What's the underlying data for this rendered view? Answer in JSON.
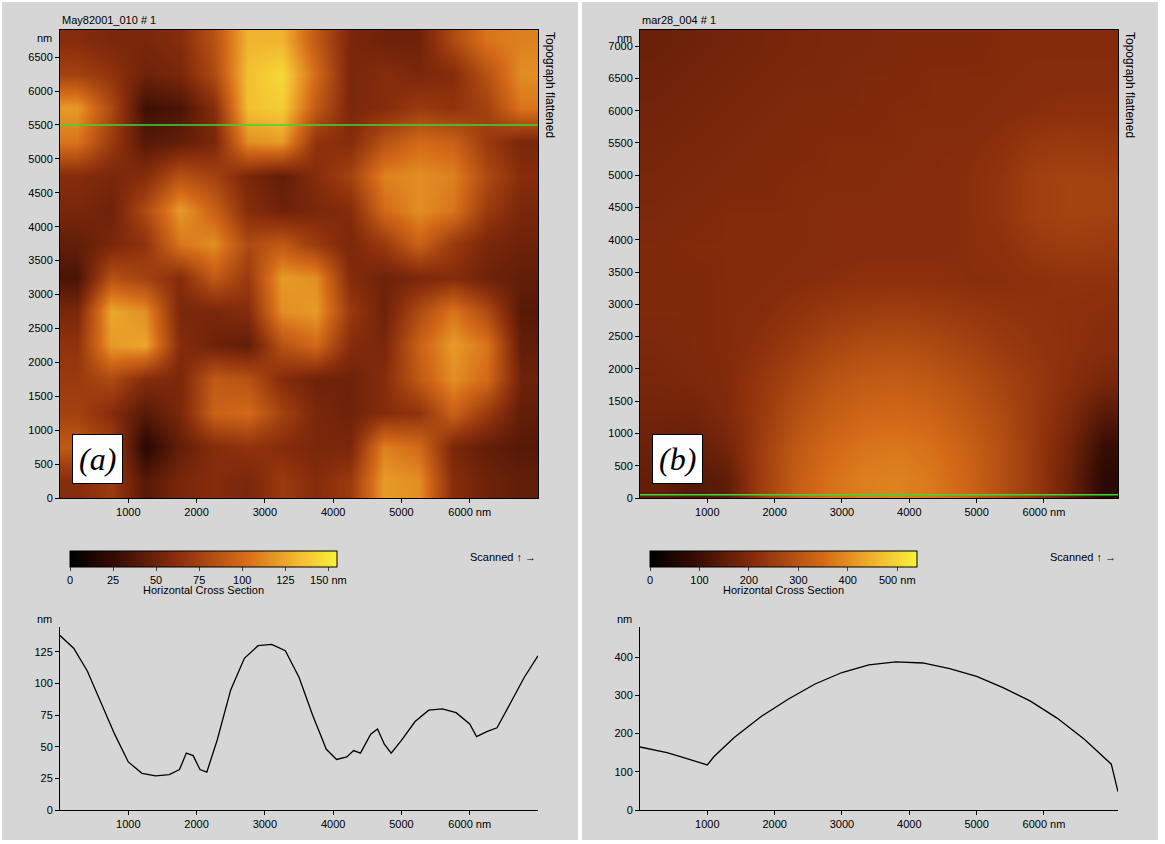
{
  "chart_data": [
    {
      "type": "heatmap",
      "label": "(a)",
      "title": "May82001_010 # 1",
      "side_text": "Topograph flattened",
      "scan_text": "Scanned ↑ →",
      "ylabel": "nm",
      "xlim": [
        0,
        7000
      ],
      "ylim": [
        0,
        6900
      ],
      "xticks": [
        1000,
        2000,
        3000,
        4000,
        5000,
        {
          "value": 6000,
          "label": "6000 nm"
        }
      ],
      "yticks": [
        0,
        500,
        1000,
        1500,
        2000,
        2500,
        3000,
        3500,
        4000,
        4500,
        5000,
        5500,
        6000,
        6500
      ],
      "x": [
        250,
        750,
        1250,
        1750,
        2250,
        2750,
        3250,
        3750,
        4250,
        4750,
        5250,
        5750,
        6250,
        6750
      ],
      "y": [
        250,
        750,
        1250,
        1750,
        2250,
        2750,
        3250,
        3750,
        4250,
        4750,
        5250,
        5750,
        6250,
        6750
      ],
      "z": [
        [
          60,
          70,
          40,
          55,
          60,
          55,
          70,
          60,
          70,
          120,
          115,
          60,
          50,
          45
        ],
        [
          90,
          75,
          20,
          45,
          60,
          65,
          60,
          55,
          55,
          110,
          100,
          55,
          45,
          40
        ],
        [
          75,
          60,
          40,
          55,
          95,
          100,
          75,
          55,
          50,
          60,
          65,
          95,
          70,
          45
        ],
        [
          70,
          80,
          60,
          55,
          90,
          85,
          60,
          50,
          50,
          60,
          90,
          115,
          100,
          50
        ],
        [
          65,
          120,
          125,
          60,
          50,
          45,
          85,
          100,
          60,
          55,
          95,
          120,
          105,
          45
        ],
        [
          55,
          125,
          115,
          55,
          55,
          60,
          115,
          120,
          70,
          50,
          80,
          105,
          80,
          40
        ],
        [
          35,
          85,
          75,
          60,
          90,
          70,
          120,
          115,
          60,
          50,
          55,
          60,
          50,
          45
        ],
        [
          45,
          55,
          65,
          105,
          115,
          80,
          90,
          70,
          55,
          70,
          95,
          70,
          55,
          50
        ],
        [
          55,
          50,
          80,
          120,
          95,
          60,
          50,
          55,
          60,
          100,
          115,
          105,
          70,
          55
        ],
        [
          60,
          55,
          60,
          85,
          75,
          55,
          45,
          60,
          75,
          110,
          115,
          110,
          80,
          60
        ],
        [
          105,
          70,
          40,
          45,
          55,
          115,
          120,
          65,
          60,
          85,
          100,
          95,
          70,
          55
        ],
        [
          120,
          80,
          30,
          35,
          60,
          135,
          140,
          90,
          55,
          60,
          70,
          65,
          75,
          105
        ],
        [
          75,
          65,
          50,
          55,
          80,
          135,
          145,
          100,
          55,
          60,
          55,
          60,
          85,
          115
        ],
        [
          60,
          55,
          55,
          60,
          85,
          130,
          130,
          90,
          55,
          50,
          50,
          80,
          105,
          110
        ]
      ],
      "zlim": [
        0,
        155
      ],
      "zticks": [
        0,
        25,
        50,
        75,
        100,
        125,
        {
          "value": 150,
          "label": "150 nm"
        }
      ],
      "cross_section_y": 5500,
      "color": "#33dd33",
      "cross_section": {
        "type": "line",
        "title": "Horizontal Cross Section",
        "ylabel": "nm",
        "color": "#000000",
        "xlim": [
          0,
          7000
        ],
        "ylim": [
          0,
          145
        ],
        "xticks": [
          1000,
          2000,
          3000,
          4000,
          5000,
          {
            "value": 6000,
            "label": "6000 nm"
          }
        ],
        "yticks": [
          0,
          25,
          50,
          75,
          100,
          125
        ],
        "x": [
          0,
          200,
          400,
          600,
          800,
          1000,
          1200,
          1400,
          1600,
          1750,
          1850,
          1950,
          2050,
          2150,
          2300,
          2500,
          2700,
          2900,
          3100,
          3300,
          3500,
          3700,
          3900,
          4050,
          4200,
          4300,
          4400,
          4550,
          4650,
          4750,
          4850,
          5000,
          5200,
          5400,
          5600,
          5800,
          6000,
          6100,
          6250,
          6400,
          6600,
          6800,
          7000
        ],
        "values": [
          138,
          128,
          110,
          85,
          60,
          38,
          29,
          27,
          28,
          32,
          45,
          43,
          32,
          30,
          55,
          95,
          120,
          130,
          131,
          126,
          105,
          75,
          48,
          40,
          42,
          47,
          45,
          60,
          64,
          52,
          45,
          55,
          70,
          79,
          80,
          77,
          68,
          58,
          62,
          65,
          85,
          105,
          122
        ]
      }
    },
    {
      "type": "heatmap",
      "label": "(b)",
      "title": "mar28_004 # 1",
      "side_text": "Topograph flattened",
      "scan_text": "Scanned ↑ →",
      "ylabel": "nm",
      "xlim": [
        0,
        7100
      ],
      "ylim": [
        0,
        7250
      ],
      "xticks": [
        1000,
        2000,
        3000,
        4000,
        5000,
        {
          "value": 6000,
          "label": "6000 nm"
        }
      ],
      "yticks": [
        0,
        500,
        1000,
        1500,
        2000,
        2500,
        3000,
        3500,
        4000,
        4500,
        5000,
        5500,
        6000,
        6500,
        7000
      ],
      "x": [
        255,
        765,
        1275,
        1785,
        2295,
        2805,
        3315,
        3825,
        4335,
        4845,
        5355,
        5865,
        6375,
        6885
      ],
      "y": [
        260,
        780,
        1300,
        1820,
        2340,
        2860,
        3380,
        3900,
        4420,
        4940,
        5460,
        5980,
        6500,
        7020
      ],
      "z": [
        [
          160,
          135,
          150,
          250,
          320,
          360,
          380,
          385,
          370,
          340,
          290,
          240,
          170,
          70
        ],
        [
          170,
          160,
          180,
          250,
          310,
          345,
          365,
          370,
          360,
          330,
          290,
          240,
          180,
          90
        ],
        [
          180,
          180,
          200,
          240,
          290,
          320,
          340,
          345,
          335,
          310,
          280,
          240,
          200,
          140
        ],
        [
          190,
          195,
          205,
          235,
          270,
          300,
          315,
          320,
          310,
          290,
          265,
          240,
          215,
          190
        ],
        [
          195,
          200,
          205,
          220,
          245,
          270,
          285,
          290,
          280,
          265,
          245,
          230,
          220,
          210
        ],
        [
          200,
          200,
          205,
          210,
          225,
          240,
          250,
          255,
          250,
          240,
          230,
          225,
          220,
          215
        ],
        [
          200,
          200,
          205,
          205,
          210,
          215,
          220,
          220,
          220,
          215,
          215,
          220,
          225,
          225
        ],
        [
          200,
          205,
          205,
          205,
          205,
          210,
          210,
          210,
          210,
          215,
          220,
          240,
          250,
          245
        ],
        [
          195,
          200,
          205,
          205,
          205,
          210,
          210,
          210,
          210,
          215,
          230,
          255,
          265,
          260
        ],
        [
          190,
          195,
          200,
          200,
          205,
          205,
          205,
          210,
          210,
          215,
          230,
          255,
          265,
          260
        ],
        [
          185,
          190,
          195,
          200,
          200,
          205,
          205,
          205,
          210,
          210,
          220,
          240,
          245,
          240
        ],
        [
          180,
          185,
          190,
          195,
          200,
          200,
          200,
          205,
          205,
          205,
          210,
          215,
          220,
          220
        ],
        [
          175,
          180,
          185,
          190,
          195,
          195,
          200,
          200,
          205,
          205,
          205,
          210,
          210,
          210
        ],
        [
          170,
          175,
          180,
          185,
          190,
          195,
          195,
          200,
          200,
          200,
          205,
          205,
          205,
          205
        ]
      ],
      "zlim": [
        0,
        540
      ],
      "zticks": [
        0,
        100,
        200,
        300,
        400,
        {
          "value": 500,
          "label": "500 nm"
        }
      ],
      "cross_section_y": 50,
      "color": "#33dd33",
      "cross_section": {
        "type": "line",
        "title": "Horizontal Cross Section",
        "ylabel": "nm",
        "color": "#000000",
        "xlim": [
          0,
          7100
        ],
        "ylim": [
          0,
          480
        ],
        "xticks": [
          1000,
          2000,
          3000,
          4000,
          5000,
          {
            "value": 6000,
            "label": "6000 nm"
          }
        ],
        "yticks": [
          0,
          100,
          200,
          300,
          400
        ],
        "x": [
          0,
          200,
          400,
          600,
          800,
          1000,
          1100,
          1400,
          1800,
          2200,
          2600,
          3000,
          3400,
          3800,
          4200,
          4600,
          5000,
          5400,
          5800,
          6200,
          6600,
          7000,
          7100
        ],
        "values": [
          165,
          158,
          150,
          140,
          128,
          118,
          140,
          190,
          245,
          290,
          330,
          360,
          380,
          388,
          385,
          370,
          350,
          320,
          285,
          240,
          185,
          120,
          48
        ]
      }
    }
  ]
}
